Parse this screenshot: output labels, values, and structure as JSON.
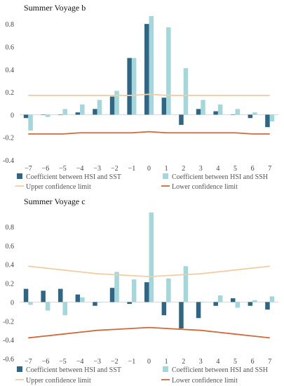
{
  "chart_data": [
    {
      "type": "bar",
      "title": "Summer Voyage b",
      "categories": [
        "−7",
        "−6",
        "−5",
        "−4",
        "−3",
        "−2",
        "−1",
        "0",
        "1",
        "2",
        "3",
        "4",
        "5",
        "6",
        "7"
      ],
      "ylim": [
        -0.4,
        0.9
      ],
      "yticks": [
        "0.8",
        "0.6",
        "0.4",
        "0.2",
        "0",
        "-0.2",
        "-0.4"
      ],
      "ytick_values": [
        0.8,
        0.6,
        0.4,
        0.2,
        0,
        -0.2,
        -0.4
      ],
      "series": [
        {
          "name": "Coefficient between HSI and SST",
          "color": "#2f6684",
          "values": [
            -0.03,
            0.0,
            0.0,
            0.02,
            0.05,
            0.16,
            0.5,
            0.8,
            0.15,
            -0.09,
            0.05,
            0.03,
            0.0,
            -0.03,
            -0.11
          ]
        },
        {
          "name": "Coefficient between HSI and SSH",
          "color": "#a3d7db",
          "values": [
            -0.14,
            -0.02,
            0.05,
            0.09,
            0.13,
            0.21,
            0.5,
            0.87,
            0.77,
            0.41,
            0.13,
            0.09,
            0.05,
            0.02,
            -0.06
          ]
        }
      ],
      "lines": [
        {
          "name": "Upper confidence limit",
          "color": "#f1cda6",
          "values": [
            0.17,
            0.17,
            0.17,
            0.17,
            0.17,
            0.17,
            0.17,
            0.18,
            0.17,
            0.17,
            0.17,
            0.17,
            0.17,
            0.17,
            0.17
          ]
        },
        {
          "name": "Lower confidence limit",
          "color": "#d0683d",
          "values": [
            -0.17,
            -0.17,
            -0.17,
            -0.16,
            -0.16,
            -0.16,
            -0.16,
            -0.15,
            -0.16,
            -0.16,
            -0.16,
            -0.16,
            -0.16,
            -0.17,
            -0.17
          ]
        }
      ],
      "legend_position": "bottom"
    },
    {
      "type": "bar",
      "title": "Summer Voyage c",
      "categories": [
        "−7",
        "−6",
        "−5",
        "−4",
        "−3",
        "−2",
        "−1",
        "0",
        "1",
        "2",
        "3",
        "4",
        "5",
        "6",
        "7"
      ],
      "ylim": [
        -0.6,
        1.0
      ],
      "yticks": [
        "0.8",
        "0.6",
        "0.4",
        "0.2",
        "0",
        "-0.2",
        "-0.4",
        "-0.6"
      ],
      "ytick_values": [
        0.8,
        0.6,
        0.4,
        0.2,
        0,
        -0.2,
        -0.4,
        -0.6
      ],
      "series": [
        {
          "name": "Coefficient between HSI and SST",
          "color": "#2f6684",
          "values": [
            0.14,
            0.12,
            0.14,
            0.08,
            -0.04,
            0.15,
            -0.02,
            0.21,
            -0.14,
            -0.28,
            -0.17,
            -0.04,
            0.04,
            -0.04,
            -0.08
          ]
        },
        {
          "name": "Coefficient between HSI and SSH",
          "color": "#a3d7db",
          "values": [
            -0.03,
            -0.09,
            -0.14,
            0.05,
            0.0,
            0.32,
            0.24,
            0.95,
            0.25,
            0.38,
            0.0,
            0.07,
            -0.06,
            0.02,
            0.06
          ]
        }
      ],
      "lines": [
        {
          "name": "Upper confidence limit",
          "color": "#f1cda6",
          "values": [
            0.38,
            0.36,
            0.34,
            0.32,
            0.3,
            0.29,
            0.28,
            0.27,
            0.28,
            0.29,
            0.3,
            0.32,
            0.34,
            0.36,
            0.38
          ]
        },
        {
          "name": "Lower confidence limit",
          "color": "#d0683d",
          "values": [
            -0.38,
            -0.36,
            -0.34,
            -0.32,
            -0.3,
            -0.29,
            -0.28,
            -0.27,
            -0.28,
            -0.29,
            -0.3,
            -0.32,
            -0.34,
            -0.36,
            -0.38
          ]
        }
      ],
      "legend_position": "bottom"
    }
  ]
}
